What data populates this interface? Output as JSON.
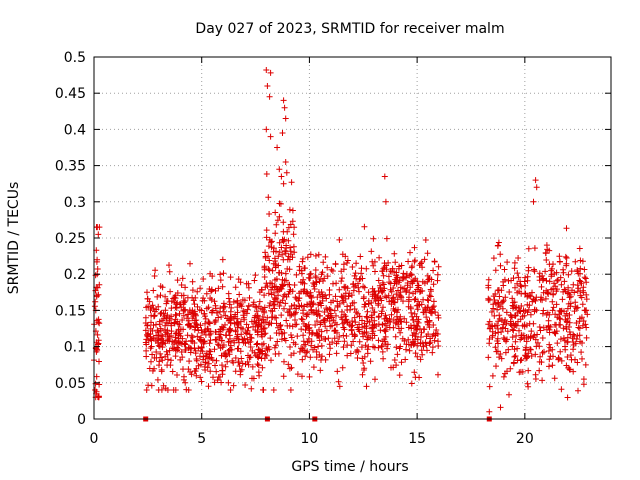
{
  "chart_data": {
    "type": "scatter",
    "title": "Day 027 of 2023, SRMTID for receiver malm",
    "xlabel": "GPS time / hours",
    "ylabel": "SRMTID / TECUs",
    "xlim": [
      0,
      24
    ],
    "ylim": [
      0,
      0.5
    ],
    "x_ticks": [
      0,
      5,
      10,
      15,
      20
    ],
    "x_tick_labels": [
      "0",
      "5",
      "10",
      "15",
      "20"
    ],
    "y_ticks": [
      0,
      0.05,
      0.1,
      0.15,
      0.2,
      0.25,
      0.3,
      0.35,
      0.4,
      0.45,
      0.5
    ],
    "y_tick_labels": [
      "0",
      "0.05",
      "0.1",
      "0.15",
      "0.2",
      "0.25",
      "0.3",
      "0.35",
      "0.4",
      "0.45",
      "0.5"
    ],
    "grid": true,
    "marker": "plus",
    "color": "#dd0000",
    "baseline_markers_x": [
      2.4,
      8.05,
      10.25,
      18.35
    ],
    "series_segments": [
      {
        "x_start": 0.0,
        "x_end": 0.25,
        "y_center": 0.12,
        "y_spread": 0.08,
        "points": 45,
        "min": 0.03,
        "max": 0.265
      },
      {
        "x_start": 2.4,
        "x_end": 7.9,
        "y_center": 0.12,
        "y_spread": 0.035,
        "points": 650,
        "min": 0.04,
        "max": 0.25
      },
      {
        "x_start": 7.9,
        "x_end": 9.3,
        "y_center": 0.18,
        "y_spread": 0.06,
        "points": 200,
        "min": 0.04,
        "max": 0.482
      },
      {
        "x_start": 9.3,
        "x_end": 16.0,
        "y_center": 0.15,
        "y_spread": 0.04,
        "points": 750,
        "min": 0.045,
        "max": 0.335
      },
      {
        "x_start": 18.3,
        "x_end": 22.9,
        "y_center": 0.14,
        "y_spread": 0.045,
        "points": 480,
        "min": 0.01,
        "max": 0.33
      }
    ],
    "notable_points": [
      {
        "x": 8.0,
        "y": 0.482
      },
      {
        "x": 8.2,
        "y": 0.478
      },
      {
        "x": 8.05,
        "y": 0.46
      },
      {
        "x": 8.15,
        "y": 0.445
      },
      {
        "x": 8.8,
        "y": 0.44
      },
      {
        "x": 8.85,
        "y": 0.43
      },
      {
        "x": 8.9,
        "y": 0.415
      },
      {
        "x": 8.75,
        "y": 0.395
      },
      {
        "x": 8.0,
        "y": 0.4
      },
      {
        "x": 8.2,
        "y": 0.39
      },
      {
        "x": 8.5,
        "y": 0.375
      },
      {
        "x": 8.9,
        "y": 0.355
      },
      {
        "x": 8.6,
        "y": 0.345
      },
      {
        "x": 8.7,
        "y": 0.335
      },
      {
        "x": 8.8,
        "y": 0.325
      },
      {
        "x": 8.95,
        "y": 0.34
      },
      {
        "x": 13.5,
        "y": 0.335
      },
      {
        "x": 13.55,
        "y": 0.3
      },
      {
        "x": 20.5,
        "y": 0.33
      },
      {
        "x": 20.55,
        "y": 0.32
      },
      {
        "x": 20.4,
        "y": 0.3
      },
      {
        "x": 0.15,
        "y": 0.265
      },
      {
        "x": 0.2,
        "y": 0.255
      },
      {
        "x": 0.15,
        "y": 0.2
      },
      {
        "x": 0.05,
        "y": 0.04
      },
      {
        "x": 0.1,
        "y": 0.035
      },
      {
        "x": 18.35,
        "y": 0.01
      }
    ]
  }
}
